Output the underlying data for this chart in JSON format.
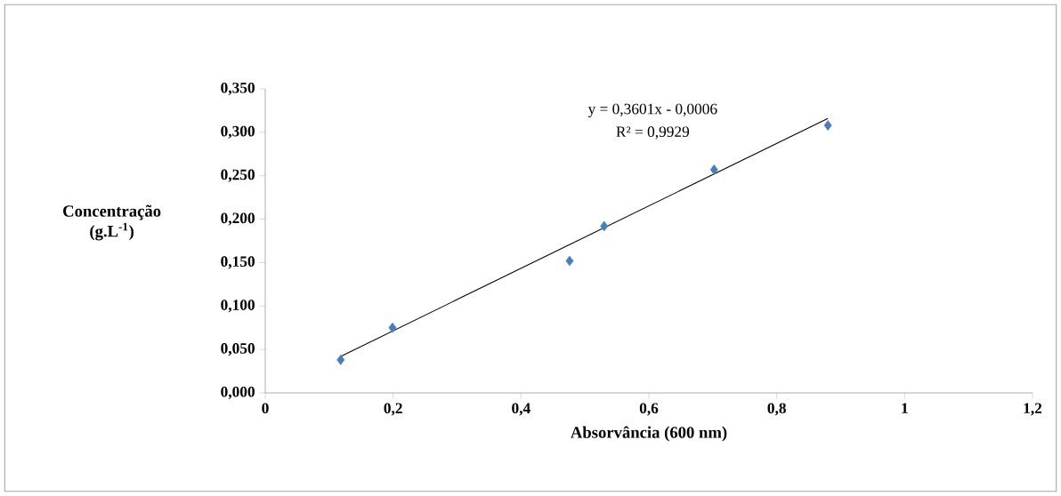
{
  "chart_data": {
    "type": "scatter",
    "xlabel": "Absorvância (600 nm)",
    "ylabel": "Concentração (g.L$^{-1}$)",
    "annotations": [
      "y = 0,3601x - 0,0006",
      "R² = 0,9929"
    ],
    "xlim": [
      0,
      1.2
    ],
    "xticks": [
      0,
      {
        "value": 0.2,
        "label": "0,2"
      },
      {
        "value": 0.4,
        "label": "0,4"
      },
      {
        "value": 0.6,
        "label": "0,6"
      },
      {
        "value": 0.8,
        "label": "0,8"
      },
      1,
      {
        "value": 1.2,
        "label": "1,2"
      }
    ],
    "ylim": [
      0,
      0.35
    ],
    "yticks": [
      {
        "value": 0,
        "label": "0,000"
      },
      {
        "value": 0.05,
        "label": "0,050"
      },
      {
        "value": 0.1,
        "label": "0,100"
      },
      {
        "value": 0.15,
        "label": "0,150"
      },
      {
        "value": 0.2,
        "label": "0,200"
      },
      {
        "value": 0.25,
        "label": "0,250"
      },
      {
        "value": 0.3,
        "label": "0,300"
      },
      {
        "value": 0.35,
        "label": "0,350"
      }
    ],
    "series": [
      {
        "marker": "diamond",
        "color": "#4a7ebb",
        "x": [
          0.118,
          0.199,
          0.476,
          0.53,
          0.702,
          0.88
        ],
        "values": [
          0.038,
          0.075,
          0.152,
          0.192,
          0.257,
          0.308
        ]
      },
      {
        "type": "line",
        "color": "#000000",
        "x": [
          0.118,
          0.88
        ],
        "values": [
          0.042,
          0.316
        ]
      }
    ]
  }
}
